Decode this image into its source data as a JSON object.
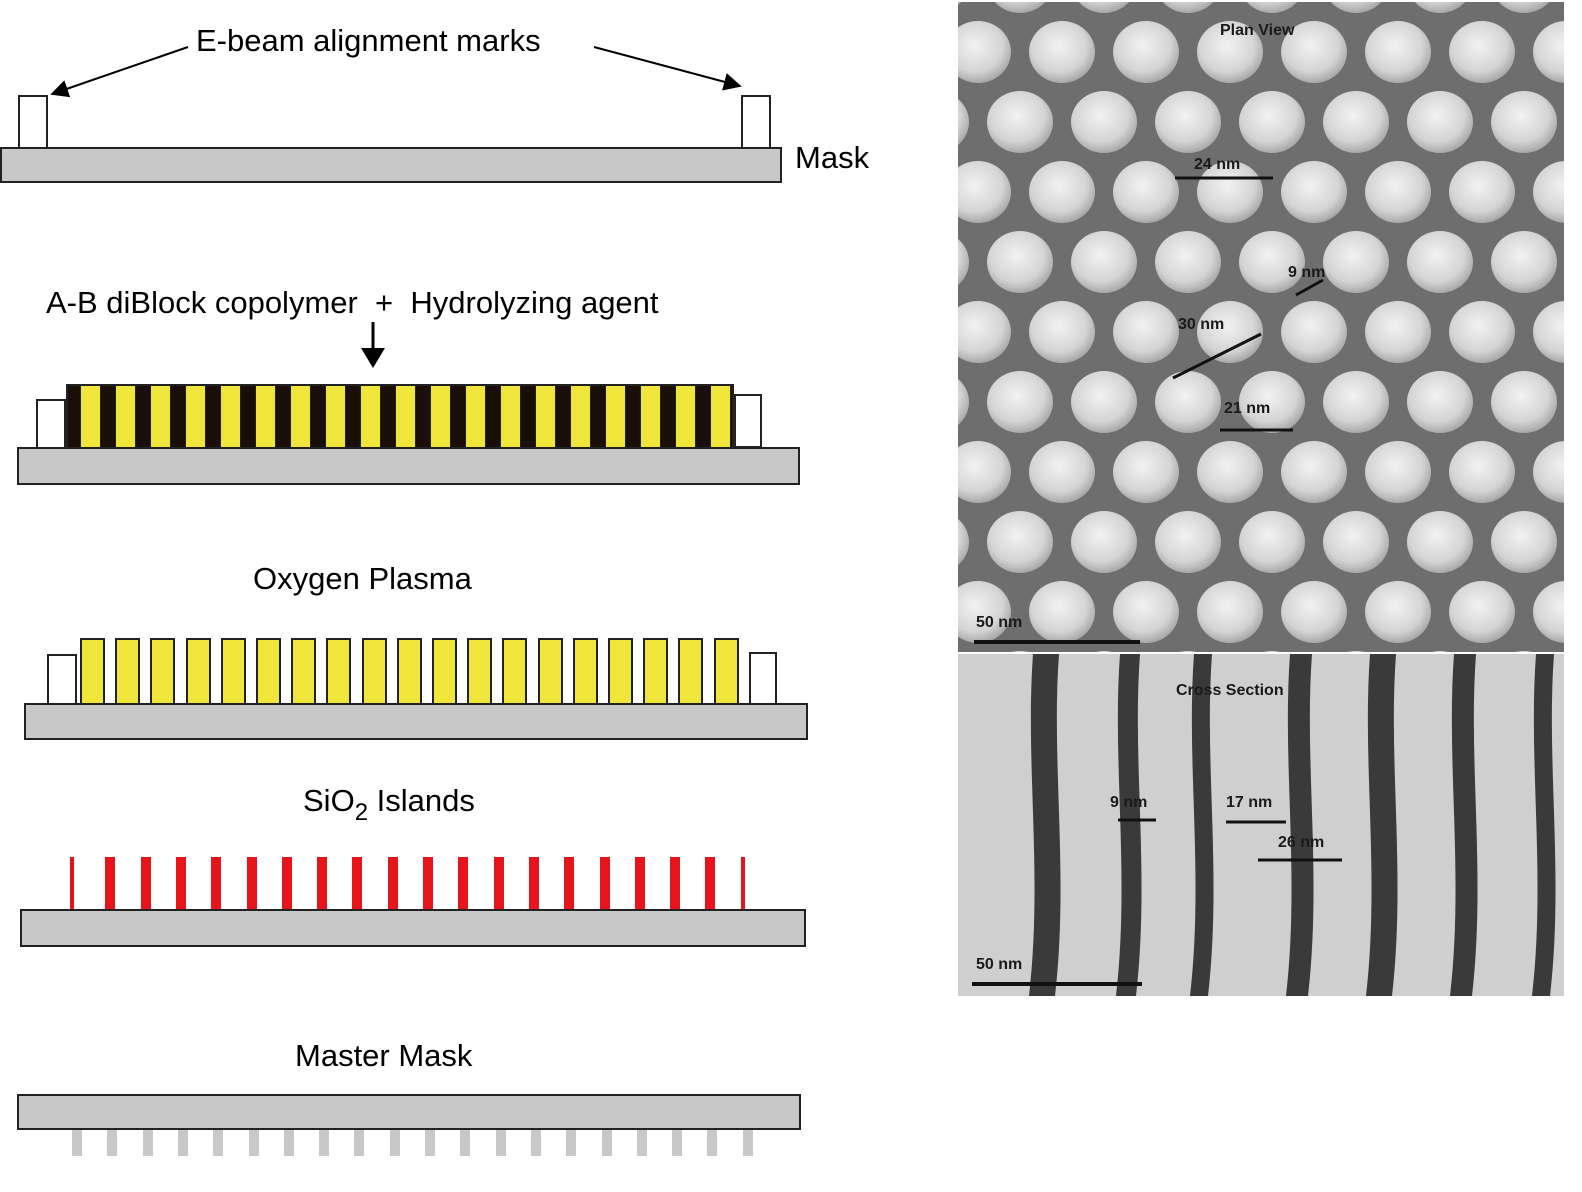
{
  "diagram": {
    "steps": [
      {
        "label": "Mask",
        "callout": "E-beam alignment marks"
      },
      {
        "label": "A-B diBlock copolymer  +  Hydrolyzing agent"
      },
      {
        "label": "Oxygen Plasma"
      },
      {
        "label_main": "SiO",
        "label_sub": "2",
        "label_rest": " Islands"
      },
      {
        "label": "Master Mask"
      }
    ],
    "colors": {
      "substrate": "#c8c8c8",
      "block_a": "#f0e53a",
      "block_b": "#1a0f08",
      "sio2": "#e8141c",
      "alignment_mark": "#ffffff"
    },
    "micrograph": {
      "plan_view_title": "Plan View",
      "cross_section_title": "Cross Section",
      "plan_labels": [
        "24 nm",
        "9 nm",
        "30 nm",
        "21 nm"
      ],
      "plan_scale": "50 nm",
      "cross_labels": [
        "9 nm",
        "17 nm",
        "26 nm"
      ],
      "cross_scale": "50 nm"
    }
  }
}
